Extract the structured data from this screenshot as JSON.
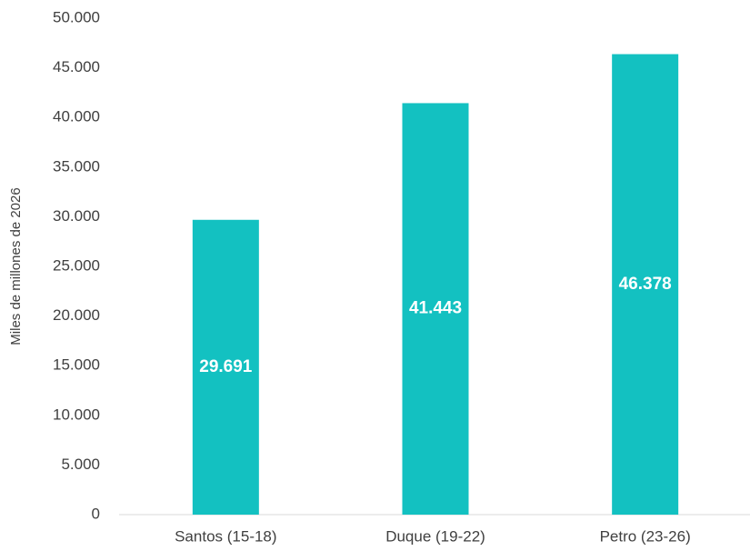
{
  "chart_data": {
    "type": "bar",
    "y_label": "Miles de millones de 2026",
    "categories": [
      "Santos (15-18)",
      "Duque (19-22)",
      "Petro (23-26)"
    ],
    "values": [
      29691,
      41443,
      46378
    ],
    "value_labels": [
      "29.691",
      "41.443",
      "46.378"
    ],
    "color": "#13c1c1",
    "ylim": [
      0,
      50000
    ],
    "yticks": [
      0,
      {
        "value": 5000,
        "label": "5.000"
      },
      {
        "value": 10000,
        "label": "10.000"
      },
      {
        "value": 15000,
        "label": "15.000"
      },
      {
        "value": 20000,
        "label": "20.000"
      },
      {
        "value": 25000,
        "label": "25.000"
      },
      {
        "value": 30000,
        "label": "30.000"
      },
      {
        "value": 35000,
        "label": "35.000"
      },
      {
        "value": 40000,
        "label": "40.000"
      },
      {
        "value": 45000,
        "label": "45.000"
      },
      {
        "value": 50000,
        "label": "50.000"
      }
    ],
    "grid": false
  }
}
